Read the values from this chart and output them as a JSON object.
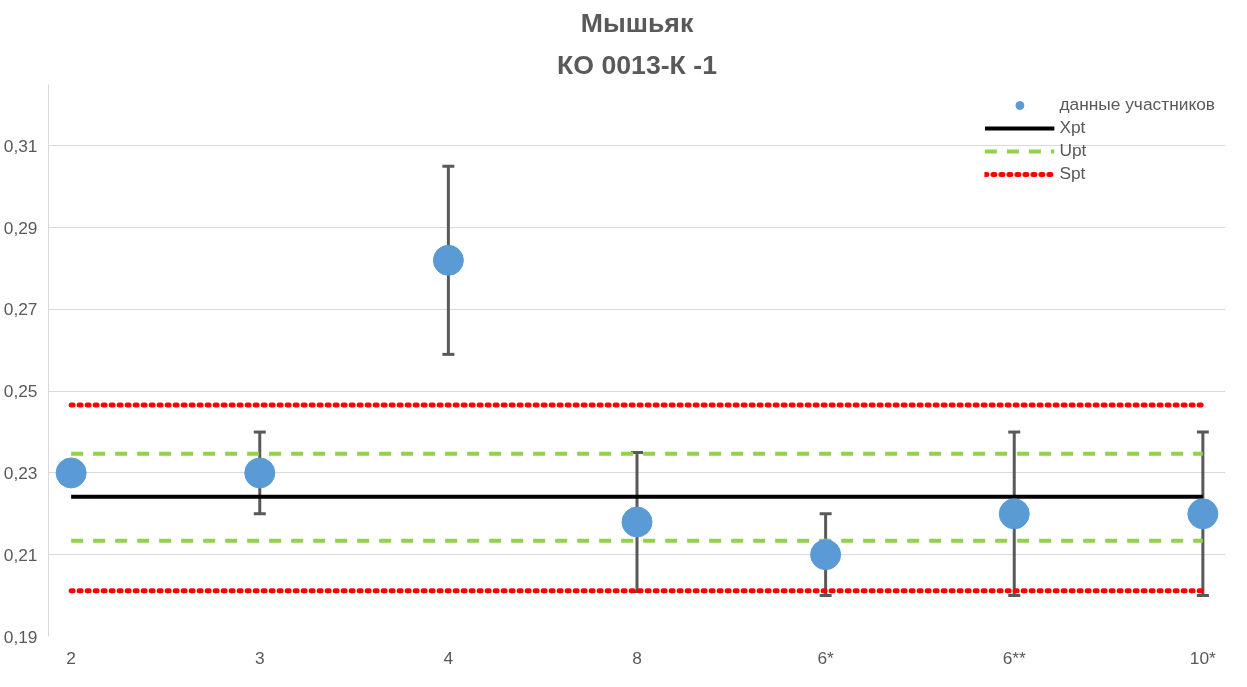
{
  "chart_data": {
    "type": "scatter",
    "title": "Мышьяк",
    "subtitle": "КО 0013-К -1",
    "categories": [
      "2",
      "3",
      "4",
      "8",
      "6*",
      "6**",
      "10*"
    ],
    "series": [
      {
        "name": "данные участников",
        "color": "#5b9bd5",
        "values": [
          0.23,
          0.23,
          0.282,
          0.218,
          0.21,
          0.22,
          0.22
        ],
        "errors": [
          null,
          [
            0.22,
            0.24
          ],
          [
            0.259,
            0.305
          ],
          [
            0.201,
            0.235
          ],
          [
            0.2,
            0.22
          ],
          [
            0.2,
            0.24
          ],
          [
            0.2,
            0.24
          ]
        ]
      }
    ],
    "ref_lines": [
      {
        "axis": "y",
        "value": 0.2242,
        "label": "Xpt",
        "color": "#000000",
        "line_style": "solid"
      },
      {
        "axis": "y",
        "value": 0.2347,
        "label": "Upt",
        "color": "#92d050",
        "line_style": "dashed"
      },
      {
        "axis": "y",
        "value": 0.2134,
        "label": null,
        "color": "#92d050",
        "line_style": "dashed"
      },
      {
        "axis": "y",
        "value": 0.2466,
        "label": "Spt",
        "color": "#ff0000",
        "line_style": "dotted"
      },
      {
        "axis": "y",
        "value": 0.2012,
        "label": null,
        "color": "#ff0000",
        "line_style": "dotted"
      }
    ],
    "ylim": [
      0.19,
      0.325
    ],
    "yticks": [
      {
        "value": 0.19,
        "label": "0,19"
      },
      {
        "value": 0.21,
        "label": "0,21"
      },
      {
        "value": 0.23,
        "label": "0,23"
      },
      {
        "value": 0.25,
        "label": "0,25"
      },
      {
        "value": 0.27,
        "label": "0,27"
      },
      {
        "value": 0.29,
        "label": "0,29"
      },
      {
        "value": 0.31,
        "label": "0,31"
      }
    ],
    "grid": "y",
    "legend": "top right",
    "marker": "circle"
  }
}
